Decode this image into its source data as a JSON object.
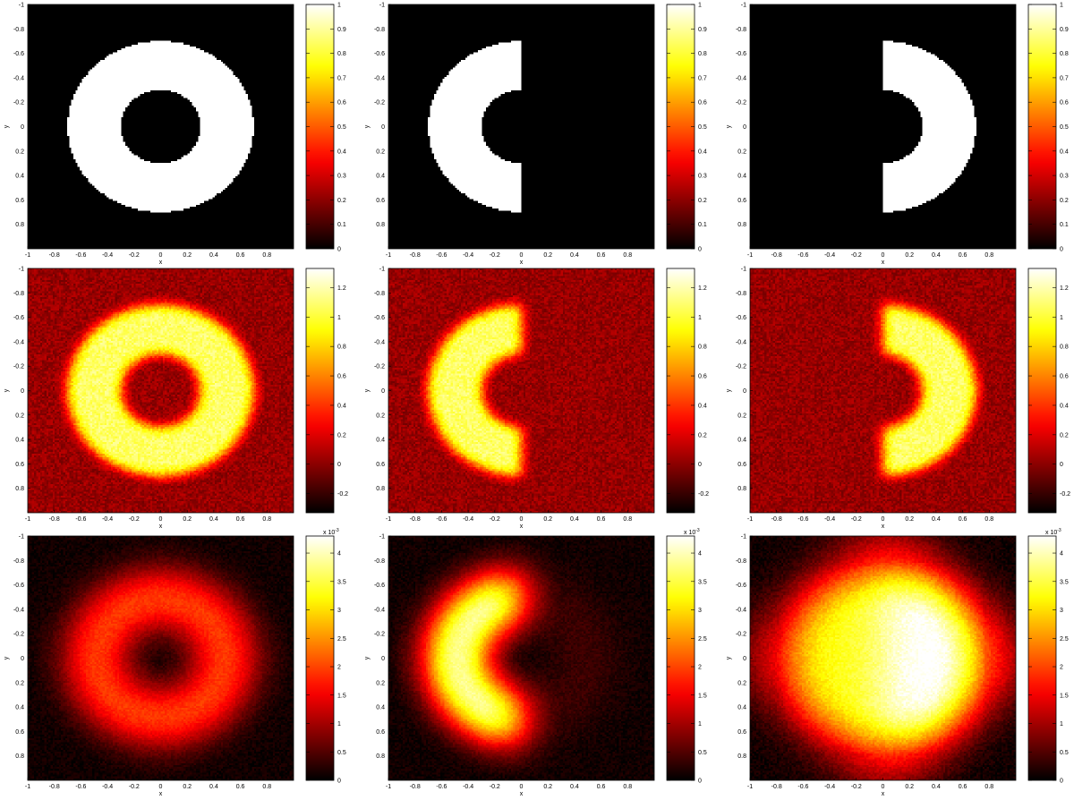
{
  "colormap": "hot",
  "colors": {
    "cmap_stops": [
      "#000000",
      "#0b0000",
      "#e60000",
      "#ff8a00",
      "#ffff00",
      "#ffffff"
    ]
  },
  "chart_data": [
    {
      "type": "heatmap",
      "row": 0,
      "col": 0,
      "shape": "full-ring",
      "blur": 0,
      "noise": 0,
      "bg": 0,
      "level": 1,
      "left_level": 1,
      "right_level": 1,
      "r_inner": 0.3,
      "r_outer": 0.7,
      "xlim": [
        -1,
        1
      ],
      "ylim": [
        -1,
        1
      ],
      "y_reversed": true,
      "xlabel": "x",
      "ylabel": "y",
      "xticks": [
        "-1",
        "-0.8",
        "-0.6",
        "-0.4",
        "-0.2",
        "0",
        "0.2",
        "0.4",
        "0.6",
        "0.8"
      ],
      "yticks": [
        "-1",
        "-0.8",
        "-0.6",
        "-0.4",
        "-0.2",
        "0",
        "0.2",
        "0.4",
        "0.6",
        "0.8"
      ],
      "colorbar": {
        "min": 0,
        "max": 1,
        "ticks": [
          0,
          0.1,
          0.2,
          0.3,
          0.4,
          0.5,
          0.6,
          0.7,
          0.8,
          0.9,
          1
        ],
        "tick_labels": [
          "0",
          "0.1",
          "0.2",
          "0.3",
          "0.4",
          "0.5",
          "0.6",
          "0.7",
          "0.8",
          "0.9",
          "1"
        ],
        "exponent": ""
      }
    },
    {
      "type": "heatmap",
      "row": 0,
      "col": 1,
      "shape": "left-half-ring",
      "blur": 0,
      "noise": 0,
      "bg": 0,
      "level": 1,
      "left_level": 1,
      "right_level": 0,
      "r_inner": 0.3,
      "r_outer": 0.7,
      "xlim": [
        -1,
        1
      ],
      "ylim": [
        -1,
        1
      ],
      "y_reversed": true,
      "xlabel": "x",
      "ylabel": "y",
      "xticks": [
        "-1",
        "-0.8",
        "-0.6",
        "-0.4",
        "-0.2",
        "0",
        "0.2",
        "0.4",
        "0.6",
        "0.8"
      ],
      "yticks": [
        "-1",
        "-0.8",
        "-0.6",
        "-0.4",
        "-0.2",
        "0",
        "0.2",
        "0.4",
        "0.6",
        "0.8"
      ],
      "colorbar": {
        "min": 0,
        "max": 1,
        "ticks": [
          0,
          0.1,
          0.2,
          0.3,
          0.4,
          0.5,
          0.6,
          0.7,
          0.8,
          0.9,
          1
        ],
        "tick_labels": [
          "0",
          "0.1",
          "0.2",
          "0.3",
          "0.4",
          "0.5",
          "0.6",
          "0.7",
          "0.8",
          "0.9",
          "1"
        ],
        "exponent": ""
      }
    },
    {
      "type": "heatmap",
      "row": 0,
      "col": 2,
      "shape": "right-half-ring",
      "blur": 0,
      "noise": 0,
      "bg": 0,
      "level": 1,
      "left_level": 0,
      "right_level": 1,
      "r_inner": 0.3,
      "r_outer": 0.7,
      "xlim": [
        -1,
        1
      ],
      "ylim": [
        -1,
        1
      ],
      "y_reversed": true,
      "xlabel": "x",
      "ylabel": "y",
      "xticks": [
        "-1",
        "-0.8",
        "-0.6",
        "-0.4",
        "-0.2",
        "0",
        "0.2",
        "0.4",
        "0.6",
        "0.8"
      ],
      "yticks": [
        "-1",
        "-0.8",
        "-0.6",
        "-0.4",
        "-0.2",
        "0",
        "0.2",
        "0.4",
        "0.6",
        "0.8"
      ],
      "colorbar": {
        "min": 0,
        "max": 1,
        "ticks": [
          0,
          0.1,
          0.2,
          0.3,
          0.4,
          0.5,
          0.6,
          0.7,
          0.8,
          0.9,
          1
        ],
        "tick_labels": [
          "0",
          "0.1",
          "0.2",
          "0.3",
          "0.4",
          "0.5",
          "0.6",
          "0.7",
          "0.8",
          "0.9",
          "1"
        ],
        "exponent": ""
      }
    },
    {
      "type": "heatmap",
      "row": 1,
      "col": 0,
      "shape": "full-ring",
      "blur": 0.04,
      "noise": 0.09,
      "bg": 0.03,
      "level": 1.05,
      "left_level": 1.05,
      "right_level": 1.05,
      "r_inner": 0.3,
      "r_outer": 0.7,
      "xlim": [
        -1,
        1
      ],
      "ylim": [
        -1,
        1
      ],
      "y_reversed": true,
      "xlabel": "x",
      "ylabel": "y",
      "xticks": [
        "-1",
        "-0.8",
        "-0.6",
        "-0.4",
        "-0.2",
        "0",
        "0.2",
        "0.4",
        "0.6",
        "0.8"
      ],
      "yticks": [
        "-1",
        "-0.8",
        "-0.6",
        "-0.4",
        "-0.2",
        "0",
        "0.2",
        "0.4",
        "0.6",
        "0.8"
      ],
      "colorbar": {
        "min": -0.33,
        "max": 1.33,
        "ticks": [
          -0.2,
          0,
          0.2,
          0.4,
          0.6,
          0.8,
          1,
          1.2
        ],
        "tick_labels": [
          "-0.2",
          "0",
          "0.2",
          "0.4",
          "0.6",
          "0.8",
          "1",
          "1.2"
        ],
        "exponent": ""
      }
    },
    {
      "type": "heatmap",
      "row": 1,
      "col": 1,
      "shape": "left-half-ring",
      "blur": 0.04,
      "noise": 0.09,
      "bg": 0.03,
      "level": 1.05,
      "left_level": 1.05,
      "right_level": 0,
      "r_inner": 0.3,
      "r_outer": 0.7,
      "xlim": [
        -1,
        1
      ],
      "ylim": [
        -1,
        1
      ],
      "y_reversed": true,
      "xlabel": "x",
      "ylabel": "y",
      "xticks": [
        "-1",
        "-0.8",
        "-0.6",
        "-0.4",
        "-0.2",
        "0",
        "0.2",
        "0.4",
        "0.6",
        "0.8"
      ],
      "yticks": [
        "-1",
        "-0.8",
        "-0.6",
        "-0.4",
        "-0.2",
        "0",
        "0.2",
        "0.4",
        "0.6",
        "0.8"
      ],
      "colorbar": {
        "min": -0.33,
        "max": 1.33,
        "ticks": [
          -0.2,
          0,
          0.2,
          0.4,
          0.6,
          0.8,
          1,
          1.2
        ],
        "tick_labels": [
          "-0.2",
          "0",
          "0.2",
          "0.4",
          "0.6",
          "0.8",
          "1",
          "1.2"
        ],
        "exponent": ""
      }
    },
    {
      "type": "heatmap",
      "row": 1,
      "col": 2,
      "shape": "right-half-ring",
      "blur": 0.04,
      "noise": 0.09,
      "bg": 0.03,
      "level": 1.05,
      "left_level": 0,
      "right_level": 1.05,
      "r_inner": 0.3,
      "r_outer": 0.7,
      "xlim": [
        -1,
        1
      ],
      "ylim": [
        -1,
        1
      ],
      "y_reversed": true,
      "xlabel": "x",
      "ylabel": "y",
      "xticks": [
        "-1",
        "-0.8",
        "-0.6",
        "-0.4",
        "-0.2",
        "0",
        "0.2",
        "0.4",
        "0.6",
        "0.8"
      ],
      "yticks": [
        "-1",
        "-0.8",
        "-0.6",
        "-0.4",
        "-0.2",
        "0",
        "0.2",
        "0.4",
        "0.6",
        "0.8"
      ],
      "colorbar": {
        "min": -0.33,
        "max": 1.33,
        "ticks": [
          -0.2,
          0,
          0.2,
          0.4,
          0.6,
          0.8,
          1,
          1.2
        ],
        "tick_labels": [
          "-0.2",
          "0",
          "0.2",
          "0.4",
          "0.6",
          "0.8",
          "1",
          "1.2"
        ],
        "exponent": ""
      }
    },
    {
      "type": "heatmap",
      "row": 2,
      "col": 0,
      "shape": "full-ring",
      "blur": 0.16,
      "noise": 0.00012,
      "bg": 0.0001,
      "level": 0.0021,
      "left_level": 0.0021,
      "right_level": 0.0021,
      "r_inner": 0.3,
      "r_outer": 0.7,
      "xlim": [
        -1,
        1
      ],
      "ylim": [
        -1,
        1
      ],
      "y_reversed": true,
      "xlabel": "x",
      "ylabel": "y",
      "xticks": [
        "-1",
        "-0.8",
        "-0.6",
        "-0.4",
        "-0.2",
        "0",
        "0.2",
        "0.4",
        "0.6",
        "0.8"
      ],
      "yticks": [
        "-1",
        "-0.8",
        "-0.6",
        "-0.4",
        "-0.2",
        "0",
        "0.2",
        "0.4",
        "0.6",
        "0.8"
      ],
      "colorbar": {
        "min": 0,
        "max": 0.0043,
        "ticks": [
          0,
          0.0005,
          0.001,
          0.0015,
          0.002,
          0.0025,
          0.003,
          0.0035,
          0.004
        ],
        "tick_labels": [
          "0",
          "0.5",
          "1",
          "1.5",
          "2",
          "2.5",
          "3",
          "3.5",
          "4"
        ],
        "exponent": "x 10^-3"
      }
    },
    {
      "type": "heatmap",
      "row": 2,
      "col": 1,
      "shape": "left-half-ring",
      "blur": 0.16,
      "noise": 0.00012,
      "bg": 0.0001,
      "level": 0.0043,
      "left_level": 0.0043,
      "right_level": 0.0003,
      "r_inner": 0.3,
      "r_outer": 0.7,
      "xlim": [
        -1,
        1
      ],
      "ylim": [
        -1,
        1
      ],
      "y_reversed": true,
      "xlabel": "x",
      "ylabel": "y",
      "xticks": [
        "-1",
        "-0.8",
        "-0.6",
        "-0.4",
        "-0.2",
        "0",
        "0.2",
        "0.4",
        "0.6",
        "0.8"
      ],
      "yticks": [
        "-1",
        "-0.8",
        "-0.6",
        "-0.4",
        "-0.2",
        "0",
        "0.2",
        "0.4",
        "0.6",
        "0.8"
      ],
      "colorbar": {
        "min": 0,
        "max": 0.0043,
        "ticks": [
          0,
          0.0005,
          0.001,
          0.0015,
          0.002,
          0.0025,
          0.003,
          0.0035,
          0.004
        ],
        "tick_labels": [
          "0",
          "0.5",
          "1",
          "1.5",
          "2",
          "2.5",
          "3",
          "3.5",
          "4"
        ],
        "exponent": "x 10^-3"
      }
    },
    {
      "type": "heatmap",
      "row": 2,
      "col": 2,
      "shape": "right-half-ring",
      "blur": 0.2,
      "noise": 0.00015,
      "bg": 0.0001,
      "level": 0.0043,
      "left_level": 0.0032,
      "right_level": 0.0043,
      "r_inner": 0.0,
      "r_outer": 0.78,
      "xlim": [
        -1,
        1
      ],
      "ylim": [
        -1,
        1
      ],
      "y_reversed": true,
      "xlabel": "x",
      "ylabel": "y",
      "xticks": [
        "-1",
        "-0.8",
        "-0.6",
        "-0.4",
        "-0.2",
        "0",
        "0.2",
        "0.4",
        "0.6",
        "0.8"
      ],
      "yticks": [
        "-1",
        "-0.8",
        "-0.6",
        "-0.4",
        "-0.2",
        "0",
        "0.2",
        "0.4",
        "0.6",
        "0.8"
      ],
      "colorbar": {
        "min": 0,
        "max": 0.0043,
        "ticks": [
          0,
          0.0005,
          0.001,
          0.0015,
          0.002,
          0.0025,
          0.003,
          0.0035,
          0.004
        ],
        "tick_labels": [
          "0",
          "0.5",
          "1",
          "1.5",
          "2",
          "2.5",
          "3",
          "3.5",
          "4"
        ],
        "exponent": "x 10^-3"
      }
    }
  ]
}
